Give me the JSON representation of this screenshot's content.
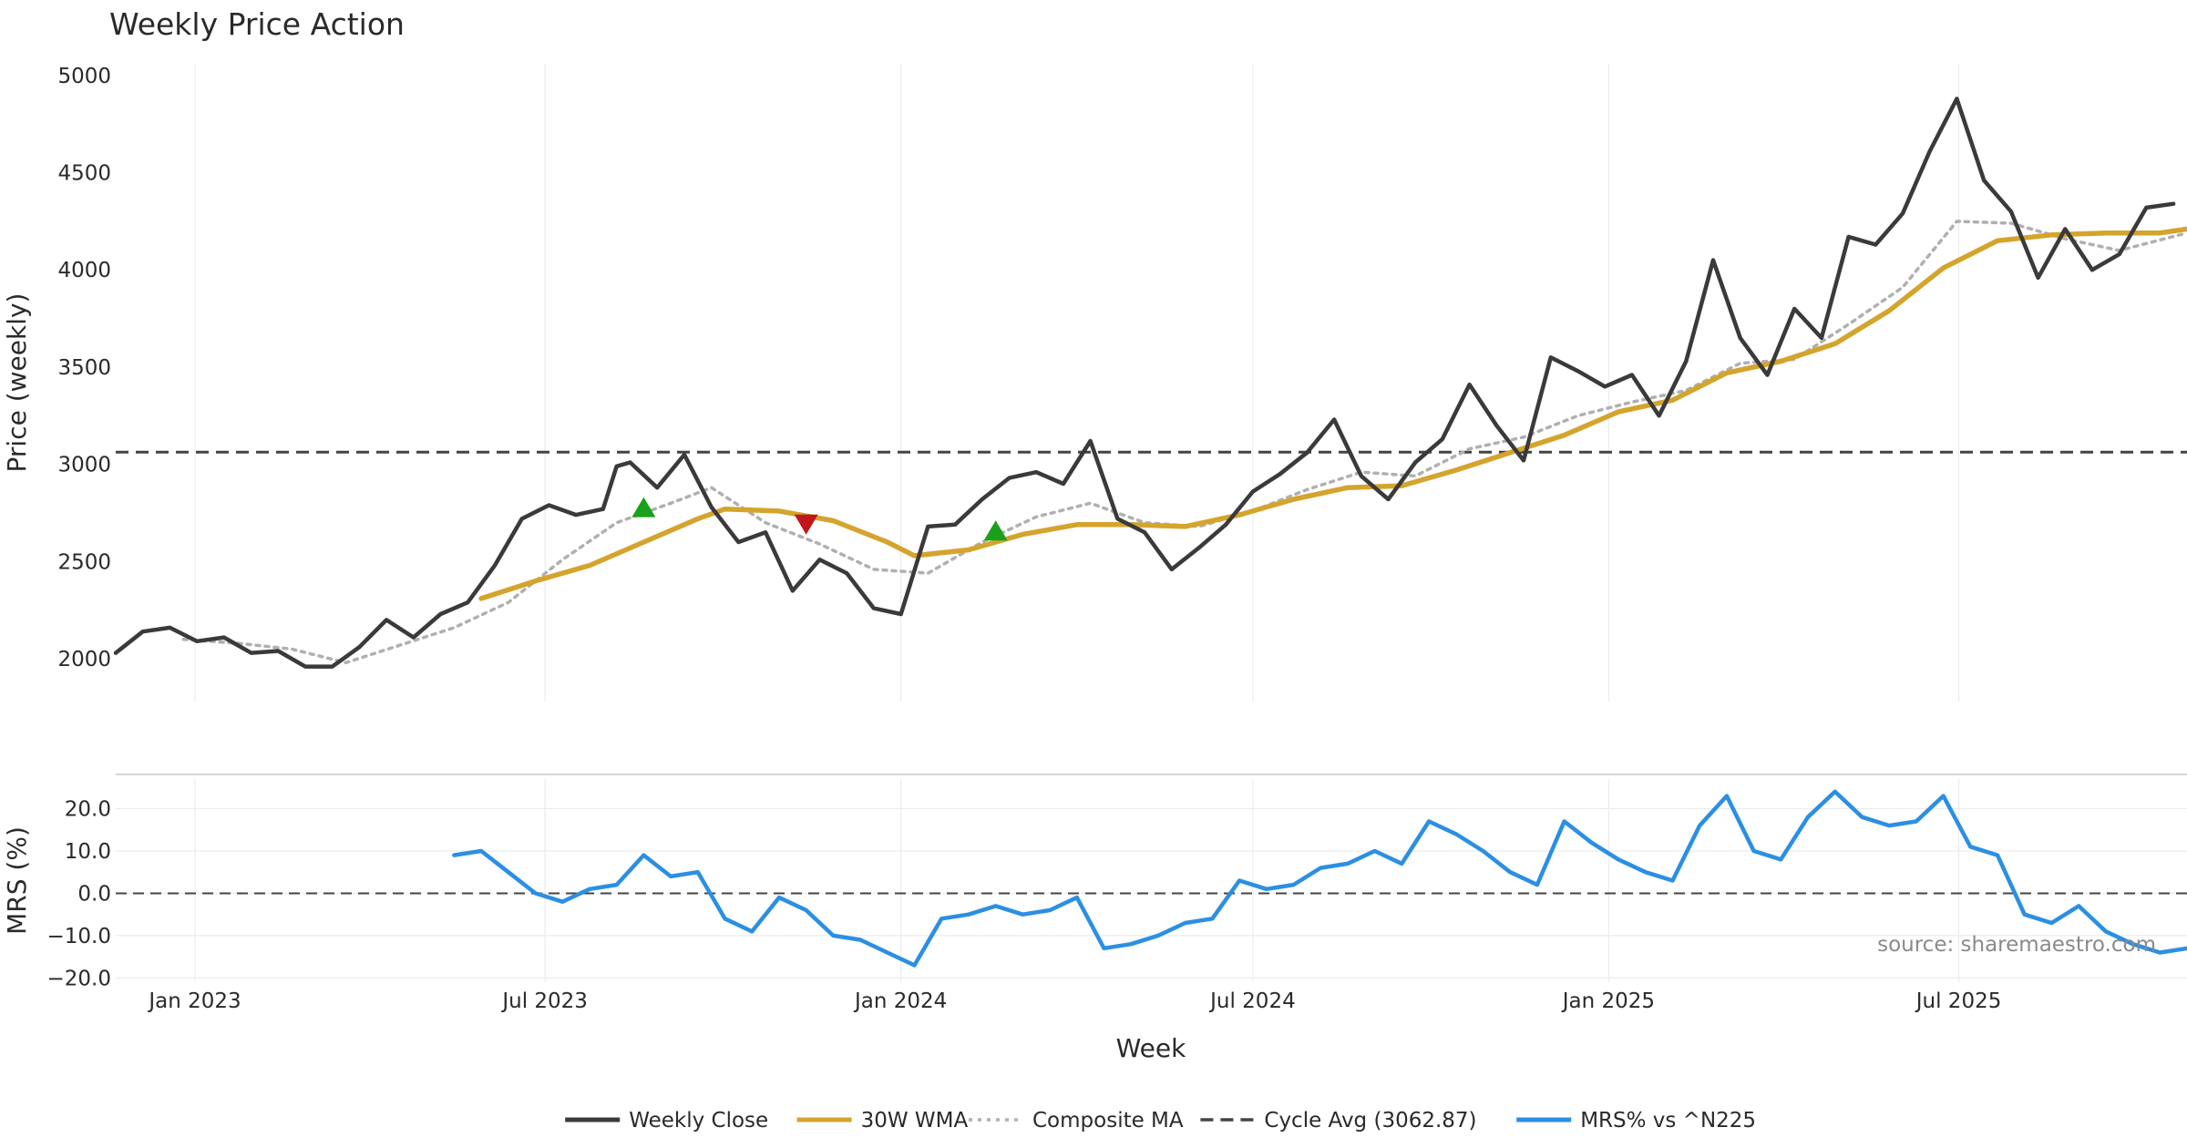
{
  "chart_data": [
    {
      "type": "line",
      "title": "Weekly Price Action",
      "xlabel": "",
      "ylabel": "Price (weekly)",
      "ylim": [
        1780,
        5060
      ],
      "yticks": [
        2000,
        2500,
        3000,
        3500,
        4000,
        4500,
        5000
      ],
      "x_range": [
        "2022-11-21",
        "2025-10-27"
      ],
      "x_ticks": [
        {
          "label": "Jan 2023",
          "date": "2023-01-01"
        },
        {
          "label": "Jul 2023",
          "date": "2023-07-01"
        },
        {
          "label": "Jan 2024",
          "date": "2024-01-01"
        },
        {
          "label": "Jul 2024",
          "date": "2024-07-01"
        },
        {
          "label": "Jan 2025",
          "date": "2025-01-01"
        },
        {
          "label": "Jul 2025",
          "date": "2025-07-01"
        }
      ],
      "grid": true,
      "reference_line": {
        "name": "Cycle Avg (3062.87)",
        "value": 3062.87,
        "color": "#444444"
      },
      "series": [
        {
          "name": "Weekly Close",
          "color": "#3a3a3a",
          "points": [
            [
              "2022-11-21",
              2030
            ],
            [
              "2022-12-05",
              2140
            ],
            [
              "2022-12-19",
              2160
            ],
            [
              "2023-01-02",
              2090
            ],
            [
              "2023-01-16",
              2110
            ],
            [
              "2023-01-30",
              2030
            ],
            [
              "2023-02-13",
              2040
            ],
            [
              "2023-02-27",
              1960
            ],
            [
              "2023-03-13",
              1960
            ],
            [
              "2023-03-27",
              2060
            ],
            [
              "2023-04-10",
              2200
            ],
            [
              "2023-04-24",
              2110
            ],
            [
              "2023-05-08",
              2230
            ],
            [
              "2023-05-22",
              2290
            ],
            [
              "2023-06-05",
              2480
            ],
            [
              "2023-06-19",
              2720
            ],
            [
              "2023-07-03",
              2790
            ],
            [
              "2023-07-17",
              2740
            ],
            [
              "2023-07-31",
              2770
            ],
            [
              "2023-08-07",
              2990
            ],
            [
              "2023-08-14",
              3010
            ],
            [
              "2023-08-28",
              2880
            ],
            [
              "2023-09-11",
              3050
            ],
            [
              "2023-09-25",
              2780
            ],
            [
              "2023-10-09",
              2600
            ],
            [
              "2023-10-23",
              2650
            ],
            [
              "2023-11-06",
              2350
            ],
            [
              "2023-11-20",
              2510
            ],
            [
              "2023-12-04",
              2440
            ],
            [
              "2023-12-18",
              2260
            ],
            [
              "2024-01-01",
              2230
            ],
            [
              "2024-01-15",
              2680
            ],
            [
              "2024-01-29",
              2690
            ],
            [
              "2024-02-12",
              2820
            ],
            [
              "2024-02-26",
              2930
            ],
            [
              "2024-03-11",
              2960
            ],
            [
              "2024-03-25",
              2900
            ],
            [
              "2024-04-08",
              3120
            ],
            [
              "2024-04-22",
              2720
            ],
            [
              "2024-05-06",
              2650
            ],
            [
              "2024-05-20",
              2460
            ],
            [
              "2024-06-03",
              2570
            ],
            [
              "2024-06-17",
              2690
            ],
            [
              "2024-07-01",
              2860
            ],
            [
              "2024-07-15",
              2950
            ],
            [
              "2024-07-29",
              3060
            ],
            [
              "2024-08-12",
              3230
            ],
            [
              "2024-08-26",
              2940
            ],
            [
              "2024-09-09",
              2820
            ],
            [
              "2024-09-23",
              3010
            ],
            [
              "2024-10-07",
              3130
            ],
            [
              "2024-10-21",
              3410
            ],
            [
              "2024-11-04",
              3200
            ],
            [
              "2024-11-18",
              3020
            ],
            [
              "2024-12-02",
              3550
            ],
            [
              "2024-12-16",
              3480
            ],
            [
              "2024-12-30",
              3400
            ],
            [
              "2025-01-13",
              3460
            ],
            [
              "2025-01-27",
              3250
            ],
            [
              "2025-02-10",
              3530
            ],
            [
              "2025-02-24",
              4050
            ],
            [
              "2025-03-10",
              3650
            ],
            [
              "2025-03-24",
              3460
            ],
            [
              "2025-04-07",
              3800
            ],
            [
              "2025-04-21",
              3650
            ],
            [
              "2025-05-05",
              4170
            ],
            [
              "2025-05-19",
              4130
            ],
            [
              "2025-06-02",
              4290
            ],
            [
              "2025-06-16",
              4610
            ],
            [
              "2025-06-30",
              4880
            ],
            [
              "2025-07-14",
              4460
            ],
            [
              "2025-07-28",
              4300
            ],
            [
              "2025-08-11",
              3960
            ],
            [
              "2025-08-25",
              4210
            ],
            [
              "2025-09-08",
              4000
            ],
            [
              "2025-09-22",
              4080
            ],
            [
              "2025-10-06",
              4320
            ],
            [
              "2025-10-20",
              4340
            ]
          ]
        },
        {
          "name": "30W WMA",
          "color": "#d4a42c",
          "points": [
            [
              "2023-05-29",
              2310
            ],
            [
              "2023-06-26",
              2400
            ],
            [
              "2023-07-24",
              2480
            ],
            [
              "2023-08-21",
              2600
            ],
            [
              "2023-09-18",
              2720
            ],
            [
              "2023-10-02",
              2770
            ],
            [
              "2023-10-30",
              2760
            ],
            [
              "2023-11-27",
              2710
            ],
            [
              "2023-12-25",
              2600
            ],
            [
              "2024-01-08",
              2530
            ],
            [
              "2024-02-05",
              2560
            ],
            [
              "2024-03-04",
              2640
            ],
            [
              "2024-04-01",
              2690
            ],
            [
              "2024-04-29",
              2690
            ],
            [
              "2024-05-27",
              2680
            ],
            [
              "2024-06-24",
              2740
            ],
            [
              "2024-07-22",
              2820
            ],
            [
              "2024-08-19",
              2880
            ],
            [
              "2024-09-16",
              2890
            ],
            [
              "2024-10-14",
              2970
            ],
            [
              "2024-11-11",
              3060
            ],
            [
              "2024-12-09",
              3150
            ],
            [
              "2025-01-06",
              3270
            ],
            [
              "2025-02-03",
              3330
            ],
            [
              "2025-03-03",
              3470
            ],
            [
              "2025-03-31",
              3530
            ],
            [
              "2025-04-28",
              3620
            ],
            [
              "2025-05-26",
              3790
            ],
            [
              "2025-06-23",
              4010
            ],
            [
              "2025-07-21",
              4150
            ],
            [
              "2025-08-18",
              4180
            ],
            [
              "2025-09-15",
              4190
            ],
            [
              "2025-10-13",
              4190
            ],
            [
              "2025-10-27",
              4210
            ]
          ]
        },
        {
          "name": "Composite MA",
          "color": "#b0b0b0",
          "points": [
            [
              "2022-12-26",
              2100
            ],
            [
              "2023-01-23",
              2080
            ],
            [
              "2023-02-20",
              2050
            ],
            [
              "2023-03-20",
              1980
            ],
            [
              "2023-04-17",
              2070
            ],
            [
              "2023-05-15",
              2160
            ],
            [
              "2023-06-12",
              2290
            ],
            [
              "2023-07-10",
              2510
            ],
            [
              "2023-08-07",
              2700
            ],
            [
              "2023-09-04",
              2800
            ],
            [
              "2023-09-25",
              2880
            ],
            [
              "2023-10-23",
              2700
            ],
            [
              "2023-11-20",
              2590
            ],
            [
              "2023-12-18",
              2460
            ],
            [
              "2024-01-15",
              2440
            ],
            [
              "2024-02-12",
              2600
            ],
            [
              "2024-03-11",
              2730
            ],
            [
              "2024-04-08",
              2800
            ],
            [
              "2024-05-06",
              2700
            ],
            [
              "2024-06-03",
              2680
            ],
            [
              "2024-07-01",
              2760
            ],
            [
              "2024-07-29",
              2870
            ],
            [
              "2024-08-26",
              2960
            ],
            [
              "2024-09-23",
              2940
            ],
            [
              "2024-10-21",
              3080
            ],
            [
              "2024-11-18",
              3140
            ],
            [
              "2024-12-16",
              3250
            ],
            [
              "2025-01-13",
              3320
            ],
            [
              "2025-02-10",
              3380
            ],
            [
              "2025-03-10",
              3520
            ],
            [
              "2025-04-07",
              3540
            ],
            [
              "2025-05-05",
              3720
            ],
            [
              "2025-06-02",
              3910
            ],
            [
              "2025-06-30",
              4250
            ],
            [
              "2025-07-28",
              4240
            ],
            [
              "2025-08-25",
              4160
            ],
            [
              "2025-09-22",
              4100
            ],
            [
              "2025-10-27",
              4190
            ]
          ]
        }
      ],
      "markers": [
        {
          "type": "buy",
          "date": "2023-08-21",
          "value": 2780,
          "color": "#1aa01a"
        },
        {
          "type": "sell",
          "date": "2023-11-13",
          "value": 2690,
          "color": "#c0171b"
        },
        {
          "type": "buy",
          "date": "2024-02-19",
          "value": 2660,
          "color": "#1aa01a"
        }
      ]
    },
    {
      "type": "line",
      "title": "",
      "xlabel": "Week",
      "ylabel": "MRS (%)",
      "ylim": [
        -21,
        27
      ],
      "yticks": [
        -20,
        -10,
        0,
        10,
        20
      ],
      "ytick_labels": [
        "−20.0",
        "−10.0",
        "0.0",
        "10.0",
        "20.0"
      ],
      "x_range": [
        "2022-11-21",
        "2025-10-27"
      ],
      "x_ticks": [
        {
          "label": "Jan 2023",
          "date": "2023-01-01"
        },
        {
          "label": "Jul 2023",
          "date": "2023-07-01"
        },
        {
          "label": "Jan 2024",
          "date": "2024-01-01"
        },
        {
          "label": "Jul 2024",
          "date": "2024-07-01"
        },
        {
          "label": "Jan 2025",
          "date": "2025-01-01"
        },
        {
          "label": "Jul 2025",
          "date": "2025-07-01"
        }
      ],
      "zero_line": true,
      "series": [
        {
          "name": "MRS% vs ^N225",
          "color": "#2b8fe3",
          "points": [
            [
              "2023-05-15",
              9
            ],
            [
              "2023-05-29",
              10
            ],
            [
              "2023-06-12",
              5
            ],
            [
              "2023-06-26",
              0
            ],
            [
              "2023-07-10",
              -2
            ],
            [
              "2023-07-24",
              1
            ],
            [
              "2023-08-07",
              2
            ],
            [
              "2023-08-21",
              9
            ],
            [
              "2023-09-04",
              4
            ],
            [
              "2023-09-18",
              5
            ],
            [
              "2023-10-02",
              -6
            ],
            [
              "2023-10-16",
              -9
            ],
            [
              "2023-10-30",
              -1
            ],
            [
              "2023-11-13",
              -4
            ],
            [
              "2023-11-27",
              -10
            ],
            [
              "2023-12-11",
              -11
            ],
            [
              "2023-12-25",
              -14
            ],
            [
              "2024-01-08",
              -17
            ],
            [
              "2024-01-22",
              -6
            ],
            [
              "2024-02-05",
              -5
            ],
            [
              "2024-02-19",
              -3
            ],
            [
              "2024-03-04",
              -5
            ],
            [
              "2024-03-18",
              -4
            ],
            [
              "2024-04-01",
              -1
            ],
            [
              "2024-04-15",
              -13
            ],
            [
              "2024-04-29",
              -12
            ],
            [
              "2024-05-13",
              -10
            ],
            [
              "2024-05-27",
              -7
            ],
            [
              "2024-06-10",
              -6
            ],
            [
              "2024-06-24",
              3
            ],
            [
              "2024-07-08",
              1
            ],
            [
              "2024-07-22",
              2
            ],
            [
              "2024-08-05",
              6
            ],
            [
              "2024-08-19",
              7
            ],
            [
              "2024-09-02",
              10
            ],
            [
              "2024-09-16",
              7
            ],
            [
              "2024-09-30",
              17
            ],
            [
              "2024-10-14",
              14
            ],
            [
              "2024-10-28",
              10
            ],
            [
              "2024-11-11",
              5
            ],
            [
              "2024-11-25",
              2
            ],
            [
              "2024-12-09",
              17
            ],
            [
              "2024-12-23",
              12
            ],
            [
              "2025-01-06",
              8
            ],
            [
              "2025-01-20",
              5
            ],
            [
              "2025-02-03",
              3
            ],
            [
              "2025-02-17",
              16
            ],
            [
              "2025-03-03",
              23
            ],
            [
              "2025-03-17",
              10
            ],
            [
              "2025-03-31",
              8
            ],
            [
              "2025-04-14",
              18
            ],
            [
              "2025-04-28",
              24
            ],
            [
              "2025-05-12",
              18
            ],
            [
              "2025-05-26",
              16
            ],
            [
              "2025-06-09",
              17
            ],
            [
              "2025-06-23",
              23
            ],
            [
              "2025-07-07",
              11
            ],
            [
              "2025-07-21",
              9
            ],
            [
              "2025-08-04",
              -5
            ],
            [
              "2025-08-18",
              -7
            ],
            [
              "2025-09-01",
              -3
            ],
            [
              "2025-09-15",
              -9
            ],
            [
              "2025-09-29",
              -12
            ],
            [
              "2025-10-13",
              -14
            ],
            [
              "2025-10-27",
              -13
            ]
          ]
        }
      ]
    }
  ],
  "legend": {
    "placement": "bottom-center",
    "items": [
      {
        "label": "Weekly Close",
        "style": "solid",
        "color": "#3a3a3a"
      },
      {
        "label": "30W WMA",
        "style": "solid",
        "color": "#d4a42c"
      },
      {
        "label": "Composite MA",
        "style": "dotted",
        "color": "#b0b0b0"
      },
      {
        "label": "Cycle Avg (3062.87)",
        "style": "dashed",
        "color": "#444444"
      },
      {
        "label": "MRS% vs ^N225",
        "style": "solid",
        "color": "#2b8fe3"
      }
    ]
  },
  "source_text": "source: sharemaestro.com"
}
